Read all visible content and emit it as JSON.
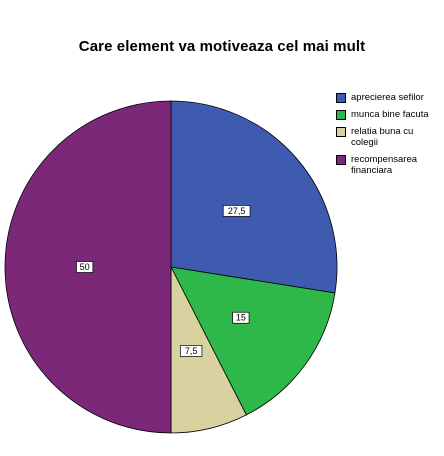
{
  "chart_data": {
    "type": "pie",
    "title": "Care element va motiveaza cel mai mult",
    "categories": [
      "aprecierea sefilor",
      "munca bine facuta",
      "relatia buna cu colegii",
      "recompensarea financiara"
    ],
    "values": [
      27.5,
      15,
      7.5,
      50
    ],
    "data_labels": [
      "27,5",
      "15",
      "7,5",
      "50"
    ],
    "colors": [
      "#3e5bb0",
      "#2fb84a",
      "#d8d2a0",
      "#7b2878"
    ],
    "legend_labels": [
      [
        "aprecierea sefilor"
      ],
      [
        "munca bine facuta"
      ],
      [
        "relatia buna cu",
        "colegii"
      ],
      [
        "recompensarea",
        "financiara"
      ]
    ],
    "legend_position": "top-right",
    "start_angle": "12 o'clock",
    "direction": "clockwise"
  }
}
